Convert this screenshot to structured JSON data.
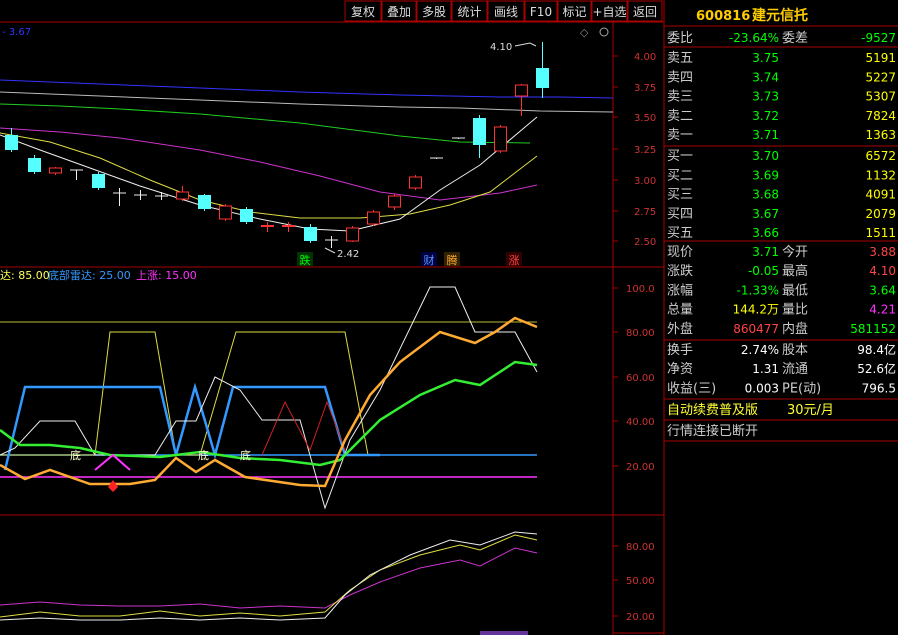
{
  "toolbar": {
    "buttons": [
      "复权",
      "叠加",
      "多股",
      "统计",
      "画线",
      "F10",
      "标记",
      "+自选",
      "返回"
    ]
  },
  "stock": {
    "code": "600816",
    "name": "建元信托"
  },
  "main_chart": {
    "top_left_value": "3.67",
    "price_ticks": [
      "4.00",
      "3.75",
      "3.50",
      "3.25",
      "3.00",
      "2.75",
      "2.50"
    ],
    "high_label": "4.10",
    "low_label": "2.42",
    "markers": [
      "跌",
      "财",
      "腾",
      "涨"
    ]
  },
  "indicator1": {
    "legend": [
      {
        "label": "达: 85.00",
        "color": "#ffff55"
      },
      {
        "label": "底部雷达: 25.00",
        "color": "#3399ff"
      },
      {
        "label": "上涨: 15.00",
        "color": "#ff33ff"
      }
    ],
    "ticks": [
      "100.0",
      "80.00",
      "60.00",
      "40.00",
      "20.00"
    ],
    "bottom_labels": [
      "底",
      "底",
      "底"
    ]
  },
  "indicator2": {
    "ticks": [
      "80.00",
      "50.00",
      "20.00"
    ]
  },
  "order_book": {
    "weibi_label": "委比",
    "weibi_value": "-23.64%",
    "weicha_label": "委差",
    "weicha_value": "-9527",
    "sells": [
      {
        "label": "卖五",
        "price": "3.75",
        "vol": "5191"
      },
      {
        "label": "卖四",
        "price": "3.74",
        "vol": "5227"
      },
      {
        "label": "卖三",
        "price": "3.73",
        "vol": "5307"
      },
      {
        "label": "卖二",
        "price": "3.72",
        "vol": "7824"
      },
      {
        "label": "卖一",
        "price": "3.71",
        "vol": "1363"
      }
    ],
    "buys": [
      {
        "label": "买一",
        "price": "3.70",
        "vol": "6572"
      },
      {
        "label": "买二",
        "price": "3.69",
        "vol": "1132"
      },
      {
        "label": "买三",
        "price": "3.68",
        "vol": "4091"
      },
      {
        "label": "买四",
        "price": "3.67",
        "vol": "2079"
      },
      {
        "label": "买五",
        "price": "3.66",
        "vol": "1511"
      }
    ]
  },
  "quote": {
    "rows": [
      {
        "l1": "现价",
        "v1": "3.71",
        "c1": "#00ff00",
        "l2": "今开",
        "v2": "3.88",
        "c2": "#ff4444"
      },
      {
        "l1": "涨跌",
        "v1": "-0.05",
        "c1": "#00ff00",
        "l2": "最高",
        "v2": "4.10",
        "c2": "#ff4444"
      },
      {
        "l1": "涨幅",
        "v1": "-1.33%",
        "c1": "#00ff00",
        "l2": "最低",
        "v2": "3.64",
        "c2": "#00ff00"
      },
      {
        "l1": "总量",
        "v1": "144.2万",
        "c1": "#ffff00",
        "l2": "量比",
        "v2": "4.21",
        "c2": "#ff33ff"
      },
      {
        "l1": "外盘",
        "v1": "860477",
        "c1": "#ff4444",
        "l2": "内盘",
        "v2": "581152",
        "c2": "#00ff00"
      }
    ],
    "rows2": [
      {
        "l1": "换手",
        "v1": "2.74%",
        "l2": "股本",
        "v2": "98.4亿"
      },
      {
        "l1": "净资",
        "v1": "1.31",
        "l2": "流通",
        "v2": "52.6亿"
      },
      {
        "l1": "收益(三)",
        "v1": "0.003",
        "l2": "PE(动)",
        "v2": "796.5"
      }
    ]
  },
  "ad": {
    "text": "自动续费普及版",
    "price": "30元/月"
  },
  "status": {
    "text": "行情连接已断开"
  },
  "colors": {
    "border": "#aa0000",
    "up": "#ff3333",
    "down": "#55ffff",
    "green": "#00ff00",
    "yellow": "#ffff00"
  }
}
